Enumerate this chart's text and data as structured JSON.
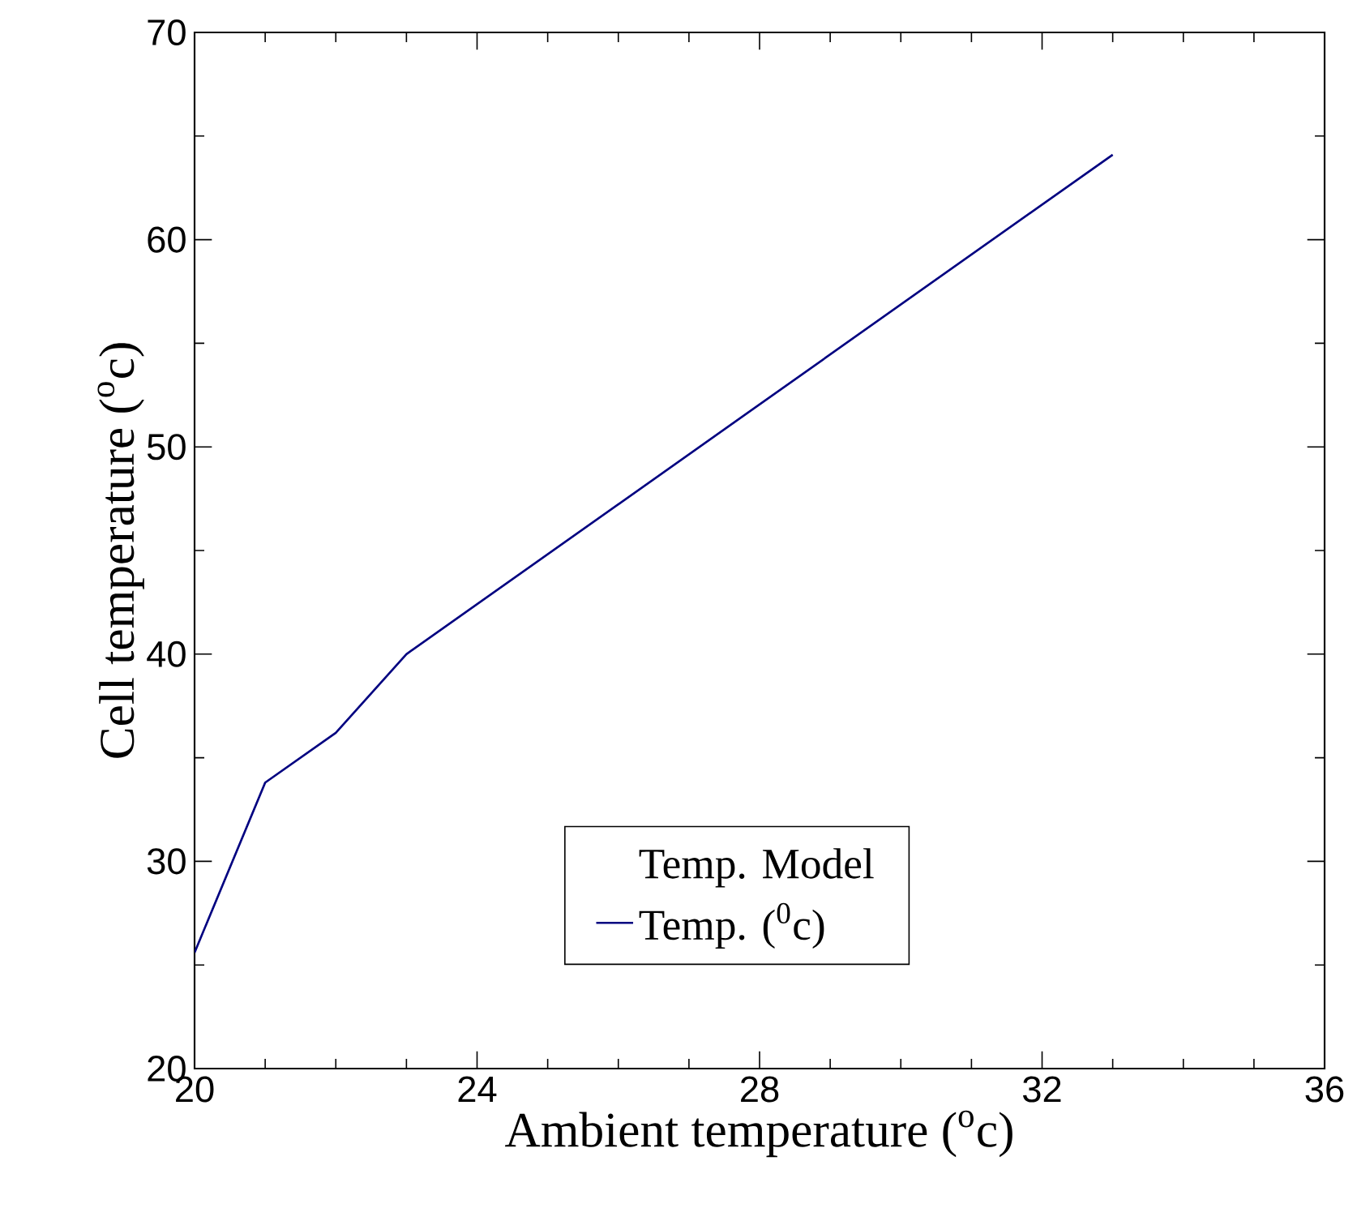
{
  "chart_data": {
    "type": "line",
    "xlabel": "Ambient temperature ($^{o}$c)",
    "ylabel": "Cell temperature ($^{o}$c)",
    "legend_title": "Temp. Model",
    "x": [
      20,
      21,
      22,
      23,
      33
    ],
    "series": [
      {
        "name": "Temp. ($^{0}$c)",
        "color": "#000080",
        "values": [
          25.6,
          33.8,
          36.2,
          40.0,
          64.1
        ]
      }
    ],
    "xlim": [
      20,
      36
    ],
    "ylim": [
      20,
      70
    ],
    "xticks": [
      20,
      24,
      28,
      32,
      36
    ],
    "yticks": [
      20,
      30,
      40,
      50,
      60,
      70
    ],
    "legend": "bottom"
  }
}
